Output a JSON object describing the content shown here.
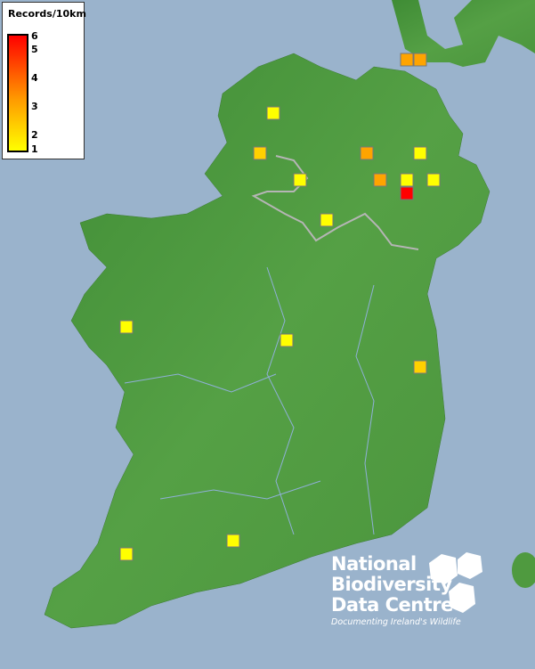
{
  "legend": {
    "title": "Records/10km",
    "ticks": [
      "6",
      "5",
      "4",
      "3",
      "2",
      "1"
    ],
    "colors": {
      "low": "#ffff00",
      "mid": "#ff9900",
      "high": "#ff0000"
    }
  },
  "map": {
    "land_color": "#4f9a3f",
    "sea_color": "#9ab3cc",
    "records": [
      3,
      3,
      1,
      2,
      3,
      1,
      1,
      3,
      1,
      1,
      6,
      1,
      1,
      1,
      2,
      1,
      1
    ]
  },
  "logo": {
    "line1": "National",
    "line2": "Biodiversity",
    "line3": "Data Centre",
    "tagline": "Documenting Ireland's Wildlife"
  }
}
